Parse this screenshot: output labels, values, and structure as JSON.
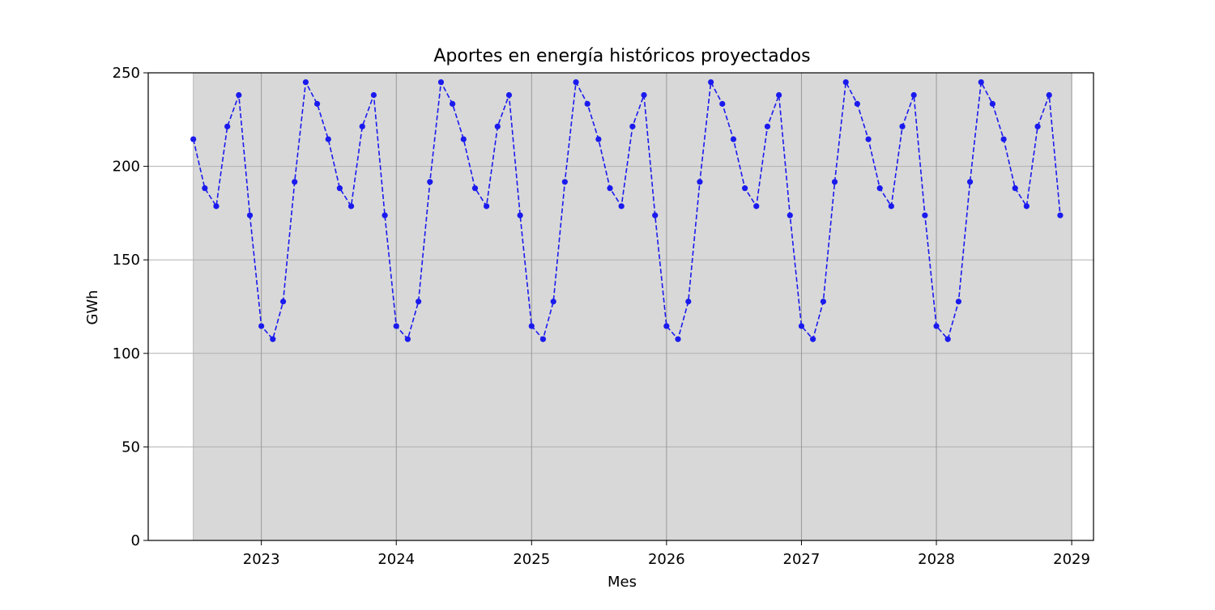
{
  "chart_data": {
    "type": "line",
    "title": "Aportes en energía históricos proyectados",
    "xlabel": "Mes",
    "ylabel": "GWh",
    "ylim": [
      0,
      250
    ],
    "xlim": [
      "2022-03-01",
      "2029-03-01"
    ],
    "yticks": [
      0,
      50,
      100,
      150,
      200,
      250
    ],
    "xticks": [
      {
        "date": "2023-01-01",
        "label": "2023"
      },
      {
        "date": "2024-01-01",
        "label": "2024"
      },
      {
        "date": "2025-01-01",
        "label": "2025"
      },
      {
        "date": "2026-01-01",
        "label": "2026"
      },
      {
        "date": "2027-01-01",
        "label": "2027"
      },
      {
        "date": "2028-01-01",
        "label": "2028"
      },
      {
        "date": "2029-01-01",
        "label": "2029"
      }
    ],
    "grid": true,
    "shaded_region": {
      "from": "2022-07-01",
      "to": "2029-01-01",
      "color": "#d8d8d8"
    },
    "colors": {
      "series": "#1a1aee",
      "shade": "#d8d8d8",
      "grid": "#b0b0b0",
      "vgrid": "#999999"
    },
    "series": [
      {
        "line_style": "dashed",
        "marker": "circle",
        "x": [
          "2022-07-01",
          "2022-08-01",
          "2022-09-01",
          "2022-10-01",
          "2022-11-01",
          "2022-12-01",
          "2023-01-01",
          "2023-02-01",
          "2023-03-01",
          "2023-04-01",
          "2023-05-01",
          "2023-06-01",
          "2023-07-01",
          "2023-08-01",
          "2023-09-01",
          "2023-10-01",
          "2023-11-01",
          "2023-12-01",
          "2024-01-01",
          "2024-02-01",
          "2024-03-01",
          "2024-04-01",
          "2024-05-01",
          "2024-06-01",
          "2024-07-01",
          "2024-08-01",
          "2024-09-01",
          "2024-10-01",
          "2024-11-01",
          "2024-12-01",
          "2025-01-01",
          "2025-02-01",
          "2025-03-01",
          "2025-04-01",
          "2025-05-01",
          "2025-06-01",
          "2025-07-01",
          "2025-08-01",
          "2025-09-01",
          "2025-10-01",
          "2025-11-01",
          "2025-12-01",
          "2026-01-01",
          "2026-02-01",
          "2026-03-01",
          "2026-04-01",
          "2026-05-01",
          "2026-06-01",
          "2026-07-01",
          "2026-08-01",
          "2026-09-01",
          "2026-10-01",
          "2026-11-01",
          "2026-12-01",
          "2027-01-01",
          "2027-02-01",
          "2027-03-01",
          "2027-04-01",
          "2027-05-01",
          "2027-06-01",
          "2027-07-01",
          "2027-08-01",
          "2027-09-01",
          "2027-10-01",
          "2027-11-01",
          "2027-12-01",
          "2028-01-01",
          "2028-02-01",
          "2028-03-01",
          "2028-04-01",
          "2028-05-01",
          "2028-06-01",
          "2028-07-01",
          "2028-08-01",
          "2028-09-01",
          "2028-10-01",
          "2028-11-01",
          "2028-12-01"
        ],
        "values": [
          214.5,
          188.3,
          178.7,
          221.3,
          238.1,
          173.8,
          114.6,
          107.6,
          127.7,
          191.7,
          245.0,
          233.4,
          214.5,
          188.3,
          178.7,
          221.3,
          238.1,
          173.8,
          114.6,
          107.6,
          127.7,
          191.7,
          245.0,
          233.4,
          214.5,
          188.3,
          178.7,
          221.3,
          238.1,
          173.8,
          114.6,
          107.6,
          127.7,
          191.7,
          245.0,
          233.4,
          214.5,
          188.3,
          178.7,
          221.3,
          238.1,
          173.8,
          114.6,
          107.6,
          127.7,
          191.7,
          245.0,
          233.4,
          214.5,
          188.3,
          178.7,
          221.3,
          238.1,
          173.8,
          114.6,
          107.6,
          127.7,
          191.7,
          245.0,
          233.4,
          214.5,
          188.3,
          178.7,
          221.3,
          238.1,
          173.8,
          114.6,
          107.6,
          127.7,
          191.7,
          245.0,
          233.4,
          214.5,
          188.3,
          178.7,
          221.3,
          238.1,
          173.8
        ]
      }
    ]
  }
}
